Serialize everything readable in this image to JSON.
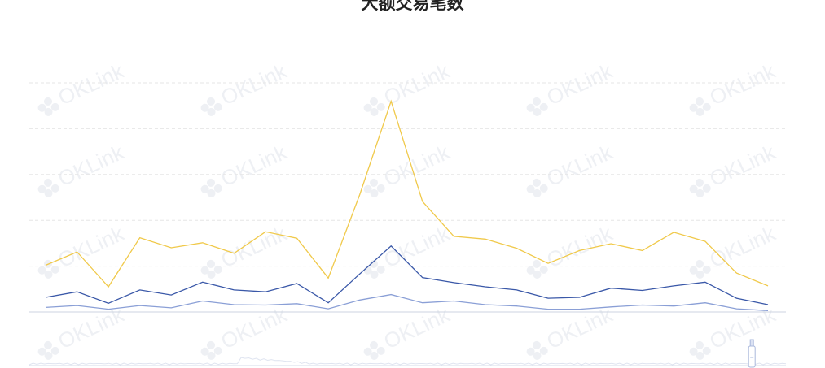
{
  "chart_data": {
    "type": "line",
    "title": "大额交易笔数",
    "xlabel": "",
    "ylabel": "",
    "ylim": [
      0,
      500
    ],
    "grid": true,
    "y_gridlines": [
      0,
      100,
      200,
      300,
      400,
      500
    ],
    "legend": "none",
    "watermark": "OKLink",
    "data_zoom": {
      "visible": true,
      "start": 0.95,
      "end": 0.96
    },
    "x": [
      1,
      2,
      3,
      4,
      5,
      6,
      7,
      8,
      9,
      10,
      11,
      12,
      13,
      14,
      15,
      16,
      17,
      18,
      19,
      20,
      21,
      22,
      23,
      24
    ],
    "series": [
      {
        "color": "#f0c94a",
        "values": [
          102,
          131,
          55,
          162,
          140,
          151,
          128,
          175,
          161,
          74,
          256,
          460,
          241,
          165,
          159,
          139,
          106,
          134,
          149,
          134,
          174,
          154,
          85,
          57
        ]
      },
      {
        "color": "#3a58a8",
        "values": [
          32,
          44,
          19,
          48,
          37,
          65,
          48,
          44,
          62,
          20,
          83,
          144,
          75,
          64,
          55,
          48,
          30,
          32,
          52,
          47,
          57,
          65,
          30,
          16
        ]
      },
      {
        "color": "#8a9fd6",
        "values": [
          10,
          14,
          6,
          14,
          9,
          24,
          16,
          15,
          18,
          7,
          26,
          38,
          20,
          24,
          16,
          13,
          6,
          6,
          11,
          15,
          13,
          20,
          7,
          3
        ]
      }
    ]
  }
}
